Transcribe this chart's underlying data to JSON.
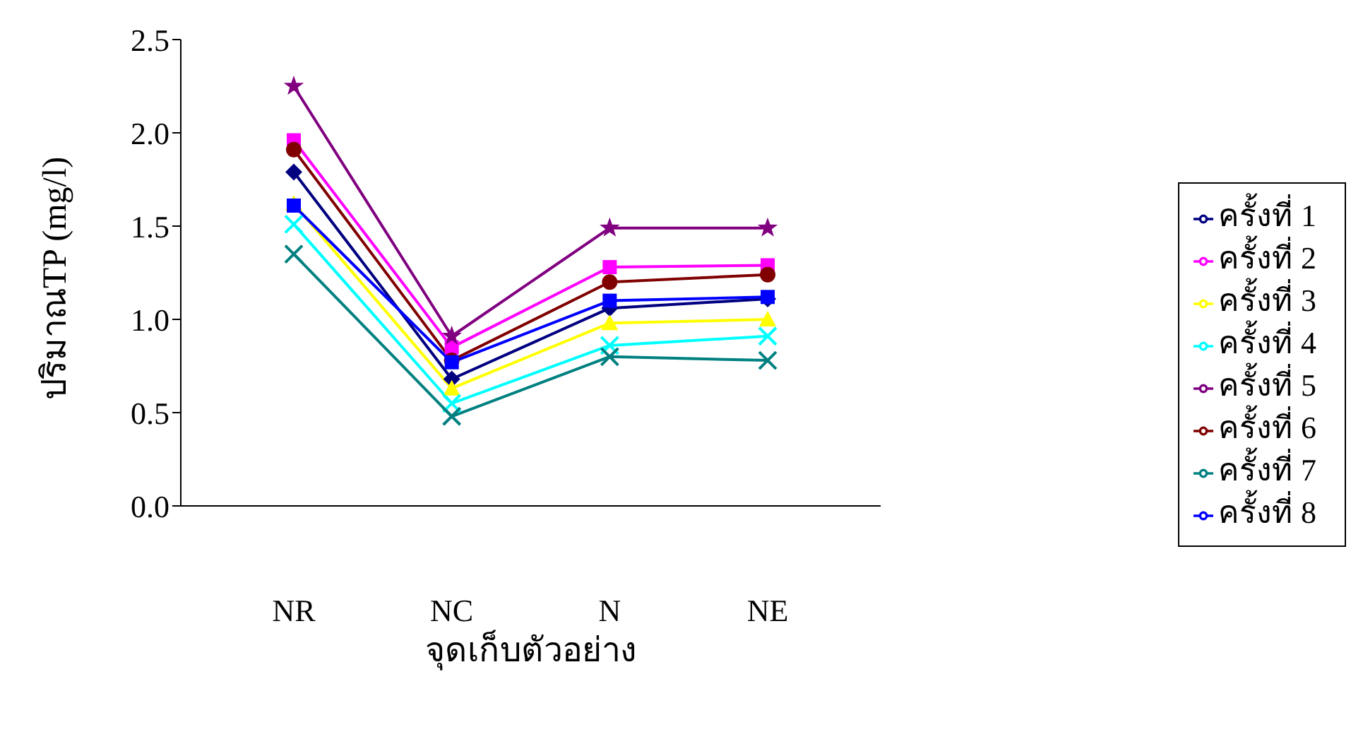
{
  "chart_data": {
    "type": "line",
    "xlabel": "จุดเก็บตัวอย่าง",
    "ylabel": "ปริมาณTP (mg/l)",
    "categories": [
      "NR",
      "NC",
      "N",
      "NE"
    ],
    "ylim": [
      0,
      2.5
    ],
    "yticks": [
      {
        "value": 0,
        "label": "0.0"
      },
      {
        "value": 0.5,
        "label": "0.5"
      },
      {
        "value": 1,
        "label": "1.0"
      },
      {
        "value": 1.5,
        "label": "1.5"
      },
      {
        "value": 2,
        "label": "2.0"
      },
      {
        "value": 2.5,
        "label": "2.5"
      }
    ],
    "grid": false,
    "legend": "right",
    "series": [
      {
        "name": "ครั้งที่ 1",
        "color": "#000080",
        "marker": "diamond",
        "values": [
          1.79,
          0.68,
          1.06,
          1.11
        ]
      },
      {
        "name": "ครั้งที่ 2",
        "color": "#ff00ff",
        "marker": "square",
        "values": [
          1.96,
          0.85,
          1.28,
          1.29
        ]
      },
      {
        "name": "ครั้งที่ 3",
        "color": "#ffff00",
        "marker": "triangle",
        "values": [
          1.62,
          0.63,
          0.98,
          1.0
        ]
      },
      {
        "name": "ครั้งที่ 4",
        "color": "#00ffff",
        "marker": "cross",
        "values": [
          1.51,
          0.55,
          0.86,
          0.91
        ]
      },
      {
        "name": "ครั้งที่ 5",
        "color": "#800080",
        "marker": "star",
        "values": [
          2.25,
          0.91,
          1.49,
          1.49
        ]
      },
      {
        "name": "ครั้งที่ 6",
        "color": "#800000",
        "marker": "circle",
        "values": [
          1.91,
          0.78,
          1.2,
          1.24
        ]
      },
      {
        "name": "ครั้งที่ 7",
        "color": "#008080",
        "marker": "cross",
        "values": [
          1.35,
          0.48,
          0.8,
          0.78
        ]
      },
      {
        "name": "ครั้งที่ 8",
        "color": "#0000ff",
        "marker": "square",
        "values": [
          1.61,
          0.77,
          1.1,
          1.12
        ]
      }
    ]
  }
}
